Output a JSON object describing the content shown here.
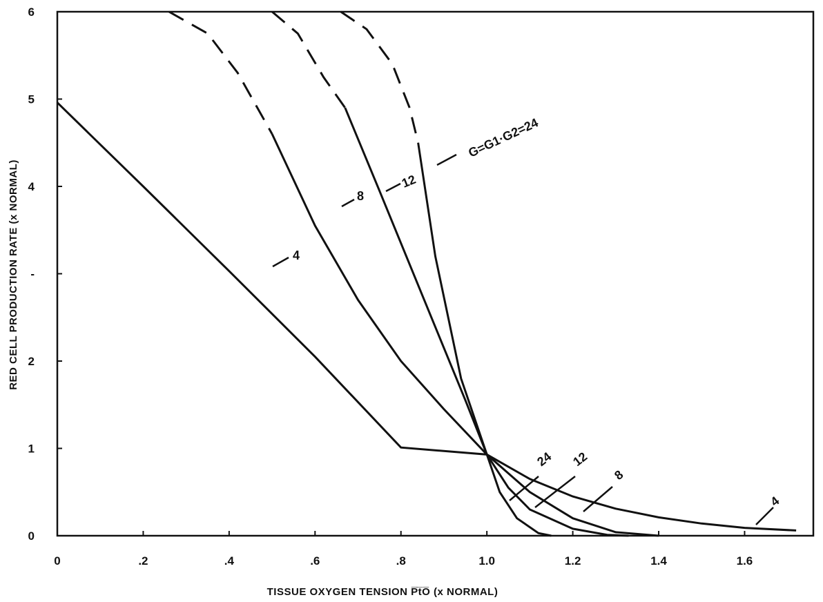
{
  "chart_data": {
    "type": "line",
    "title": "",
    "xlabel": "TISSUE OXYGEN TENSION P̅t̅O̅ (x NORMAL)",
    "ylabel": "RED CELL PRODUCTION RATE (x NORMAL)",
    "xlim": [
      0,
      1.76
    ],
    "ylim": [
      0,
      6
    ],
    "x_ticks": [
      {
        "value": 0,
        "label": "0"
      },
      {
        "value": 0.2,
        "label": ".2"
      },
      {
        "value": 0.4,
        "label": ".4"
      },
      {
        "value": 0.6,
        "label": ".6"
      },
      {
        "value": 0.8,
        "label": ".8"
      },
      {
        "value": 1.0,
        "label": "1.0"
      },
      {
        "value": 1.2,
        "label": "1.2"
      },
      {
        "value": 1.4,
        "label": "1.4"
      },
      {
        "value": 1.6,
        "label": "1.6"
      }
    ],
    "y_ticks": [
      {
        "value": 0,
        "label": "0"
      },
      {
        "value": 1,
        "label": "1"
      },
      {
        "value": 2,
        "label": "2"
      },
      {
        "value": 3,
        "label": "-"
      },
      {
        "value": 4,
        "label": "4"
      },
      {
        "value": 5,
        "label": "5"
      },
      {
        "value": 6,
        "label": "6"
      }
    ],
    "grid": false,
    "legend": "none",
    "note": "curves above the last solid point are drawn dashed up to the upper limit of 6",
    "series": [
      {
        "name": "4",
        "x": [
          0,
          0.2,
          0.4,
          0.6,
          0.8,
          1.0,
          1.1,
          1.2,
          1.3,
          1.4,
          1.5,
          1.6,
          1.72
        ],
        "y": [
          4.96,
          4.0,
          3.03,
          2.05,
          1.01,
          0.93,
          0.65,
          0.45,
          0.31,
          0.21,
          0.14,
          0.09,
          0.06
        ]
      },
      {
        "name": "8",
        "dashed_until_x": 0.5,
        "x": [
          0.26,
          0.35,
          0.42,
          0.5,
          0.6,
          0.7,
          0.8,
          0.9,
          1.0,
          1.1,
          1.2,
          1.3,
          1.4
        ],
        "y": [
          6.0,
          5.75,
          5.3,
          4.6,
          3.55,
          2.7,
          2.0,
          1.45,
          0.93,
          0.5,
          0.2,
          0.04,
          0.0
        ]
      },
      {
        "name": "12",
        "dashed_until_x": 0.67,
        "x": [
          0.5,
          0.56,
          0.62,
          0.67,
          0.75,
          0.85,
          0.95,
          1.0,
          1.05,
          1.1,
          1.2,
          1.28,
          1.33
        ],
        "y": [
          6.0,
          5.75,
          5.25,
          4.9,
          3.95,
          2.75,
          1.55,
          0.93,
          0.55,
          0.3,
          0.08,
          0.01,
          0.0
        ]
      },
      {
        "name": "24",
        "dashed_until_x": 0.84,
        "x": [
          0.66,
          0.72,
          0.78,
          0.82,
          0.84,
          0.88,
          0.94,
          1.0,
          1.03,
          1.07,
          1.12,
          1.15
        ],
        "y": [
          6.0,
          5.8,
          5.4,
          4.9,
          4.5,
          3.2,
          1.8,
          0.93,
          0.5,
          0.2,
          0.03,
          0.0
        ]
      }
    ],
    "annotations": {
      "upper": [
        {
          "text": "4",
          "series": "4"
        },
        {
          "text": "8",
          "series": "8"
        },
        {
          "text": "12",
          "series": "12"
        },
        {
          "text": "G=G1·G2=24",
          "series": "24"
        }
      ],
      "lower": [
        {
          "text": "24",
          "series": "24"
        },
        {
          "text": "12",
          "series": "12"
        },
        {
          "text": "8",
          "series": "8"
        },
        {
          "text": "4",
          "series": "4"
        }
      ]
    }
  }
}
